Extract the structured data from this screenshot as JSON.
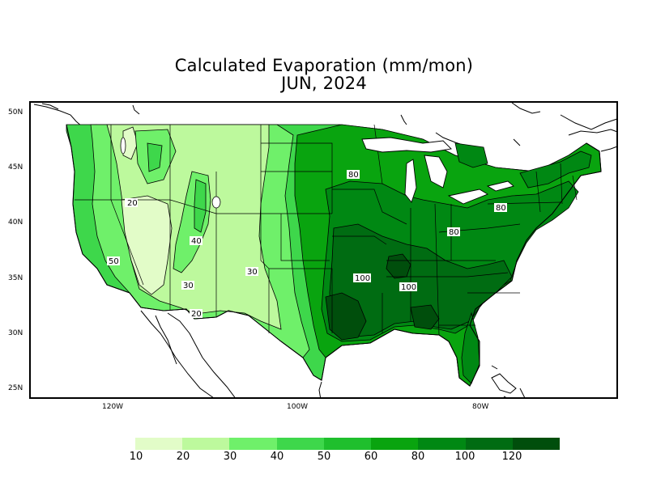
{
  "title": {
    "line1": "Calculated Evaporation (mm/mon)",
    "line2": "JUN, 2024"
  },
  "lat_labels": [
    "50N",
    "45N",
    "40N",
    "35N",
    "30N",
    "25N"
  ],
  "lon_labels": [
    "120W",
    "100W",
    "80W"
  ],
  "contour_labels": [
    "20",
    "40",
    "50",
    "30",
    "30",
    "20",
    "80",
    "80",
    "80",
    "100",
    "100"
  ],
  "colorbar": {
    "colors": [
      "#e2fcc8",
      "#bdf99d",
      "#6ff06a",
      "#3ed74b",
      "#1fbf2d",
      "#09a40f",
      "#008813",
      "#006c12",
      "#004e0c"
    ],
    "labels": [
      "10",
      "20",
      "30",
      "40",
      "50",
      "60",
      "80",
      "100",
      "120"
    ]
  }
}
